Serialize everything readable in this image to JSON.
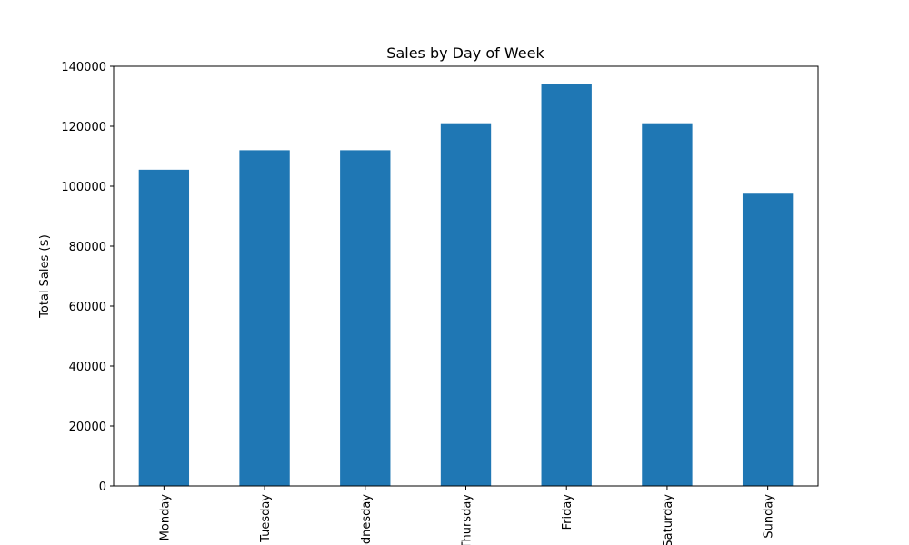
{
  "chart_data": {
    "type": "bar",
    "title": "Sales by Day of Week",
    "xlabel": "",
    "ylabel": "Total Sales ($)",
    "categories": [
      "Monday",
      "Tuesday",
      "Wednesday",
      "Thursday",
      "Friday",
      "Saturday",
      "Sunday"
    ],
    "values": [
      105500,
      112000,
      112000,
      121000,
      134000,
      121000,
      97500
    ],
    "ylim": [
      0,
      140000
    ],
    "yticks": [
      0,
      20000,
      40000,
      60000,
      80000,
      100000,
      120000,
      140000
    ],
    "grid": false,
    "legend": "none",
    "bar_color": "#1f77b4"
  }
}
